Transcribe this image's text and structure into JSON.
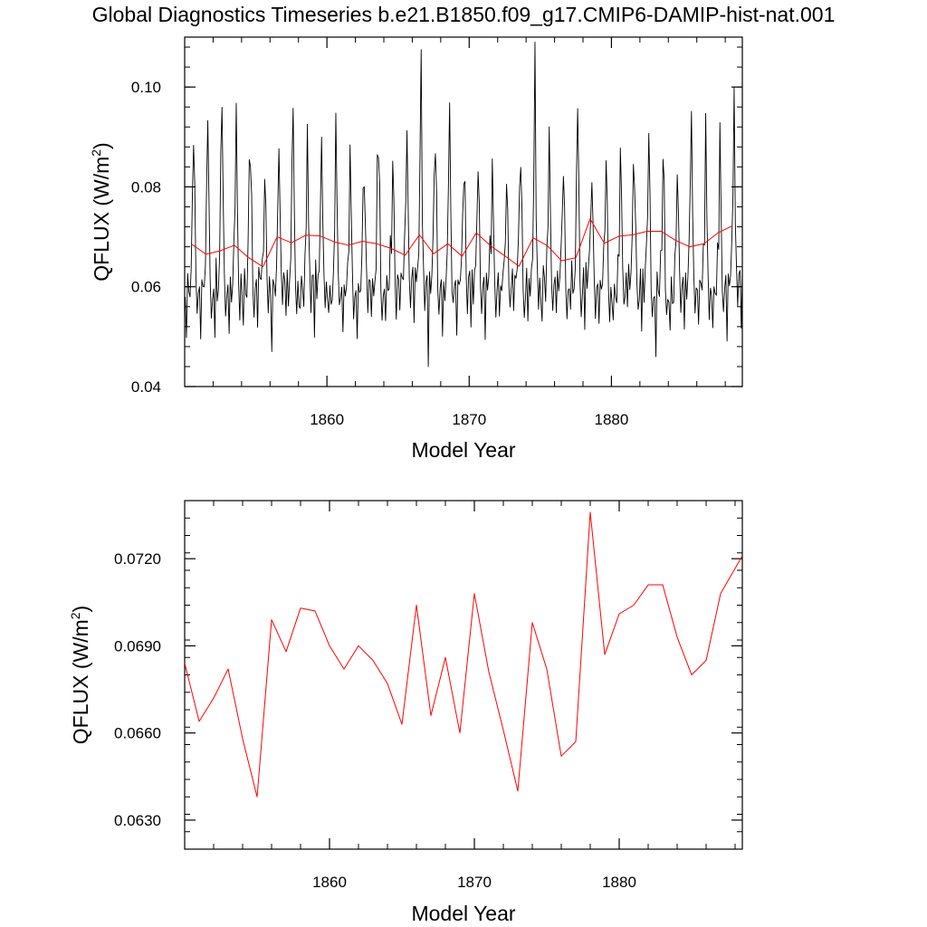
{
  "title": "Global Diagnostics Timeseries b.e21.B1850.f09_g17.CMIP6-DAMIP-hist-nat.001",
  "colors": {
    "monthly": "#000000",
    "annual": "#ff0000",
    "axis": "#000000"
  },
  "chart_data": [
    {
      "type": "line",
      "xlabel": "Model Year",
      "ylabel": "QFLUX (W/m",
      "ylabel_sup": "2",
      "ylabel_close": ")",
      "xlim": [
        1850,
        1889.2
      ],
      "ylim": [
        0.04,
        0.11
      ],
      "x_ticks": [
        1860,
        1870,
        1880
      ],
      "x_tick_labels": [
        "1860",
        "1870",
        "1880"
      ],
      "y_ticks": [
        0.04,
        0.06,
        0.08,
        0.1
      ],
      "y_tick_labels": [
        "0.04",
        "0.06",
        "0.08",
        "0.10"
      ],
      "series": [
        {
          "color": "#000000",
          "style": "monthly",
          "seed": 7,
          "peak_overrides": {
            "1866": 0.1075,
            "1874": 0.109,
            "1888": 0.1
          },
          "trough_overrides": {
            "1867": 0.044,
            "1883": 0.046,
            "1856": 0.047
          }
        },
        {
          "color": "#ff0000",
          "style": "annual",
          "x": [
            1850.5,
            1851.5,
            1852.5,
            1853.5,
            1854.5,
            1855.5,
            1856.5,
            1857.5,
            1858.5,
            1859.5,
            1860.5,
            1861.5,
            1862.5,
            1863.5,
            1864.5,
            1865.5,
            1866.5,
            1867.5,
            1868.5,
            1869.5,
            1870.5,
            1871.5,
            1872.5,
            1873.5,
            1874.5,
            1875.5,
            1876.5,
            1877.5,
            1878.5,
            1879.5,
            1880.5,
            1881.5,
            1882.5,
            1883.5,
            1884.5,
            1885.5,
            1886.5,
            1887.5,
            1888.5
          ],
          "values": [
            0.0685,
            0.0665,
            0.0672,
            0.0683,
            0.0658,
            0.064,
            0.07,
            0.0688,
            0.0703,
            0.0702,
            0.069,
            0.0683,
            0.0691,
            0.0686,
            0.0677,
            0.0663,
            0.0704,
            0.0666,
            0.0686,
            0.0661,
            0.0708,
            0.0682,
            0.0662,
            0.0641,
            0.0698,
            0.0682,
            0.0652,
            0.0658,
            0.0736,
            0.0687,
            0.0701,
            0.0704,
            0.0711,
            0.0711,
            0.0693,
            0.068,
            0.0686,
            0.0708,
            0.0722
          ]
        }
      ]
    },
    {
      "type": "line",
      "xlabel": "Model Year",
      "ylabel": "QFLUX (W/m",
      "ylabel_sup": "2",
      "ylabel_close": ")",
      "xlim": [
        1850,
        1888.5
      ],
      "ylim": [
        0.062,
        0.074
      ],
      "x_ticks": [
        1860,
        1870,
        1880
      ],
      "x_tick_labels": [
        "1860",
        "1870",
        "1880"
      ],
      "y_ticks": [
        0.063,
        0.066,
        0.069,
        0.072
      ],
      "y_tick_labels": [
        "0.0630",
        "0.0660",
        "0.0690",
        "0.0720"
      ],
      "series": [
        {
          "color": "#ff0000",
          "style": "annual",
          "x": [
            1850,
            1851,
            1852,
            1853,
            1854,
            1855,
            1856,
            1857,
            1858,
            1859,
            1860,
            1861,
            1862,
            1863,
            1864,
            1865,
            1866,
            1867,
            1868,
            1869,
            1870,
            1871,
            1872,
            1873,
            1874,
            1875,
            1876,
            1877,
            1878,
            1879,
            1880,
            1881,
            1882,
            1883,
            1884,
            1885,
            1886,
            1887,
            1888.5
          ],
          "values": [
            0.0684,
            0.0664,
            0.0672,
            0.0682,
            0.0658,
            0.0638,
            0.0699,
            0.0688,
            0.0703,
            0.0702,
            0.069,
            0.0682,
            0.069,
            0.0685,
            0.0677,
            0.0663,
            0.0704,
            0.0666,
            0.0686,
            0.066,
            0.0708,
            0.0681,
            0.0661,
            0.064,
            0.0698,
            0.0682,
            0.0652,
            0.0657,
            0.0736,
            0.0687,
            0.0701,
            0.0704,
            0.0711,
            0.0711,
            0.0693,
            0.068,
            0.0685,
            0.0708,
            0.0721
          ]
        }
      ]
    }
  ]
}
